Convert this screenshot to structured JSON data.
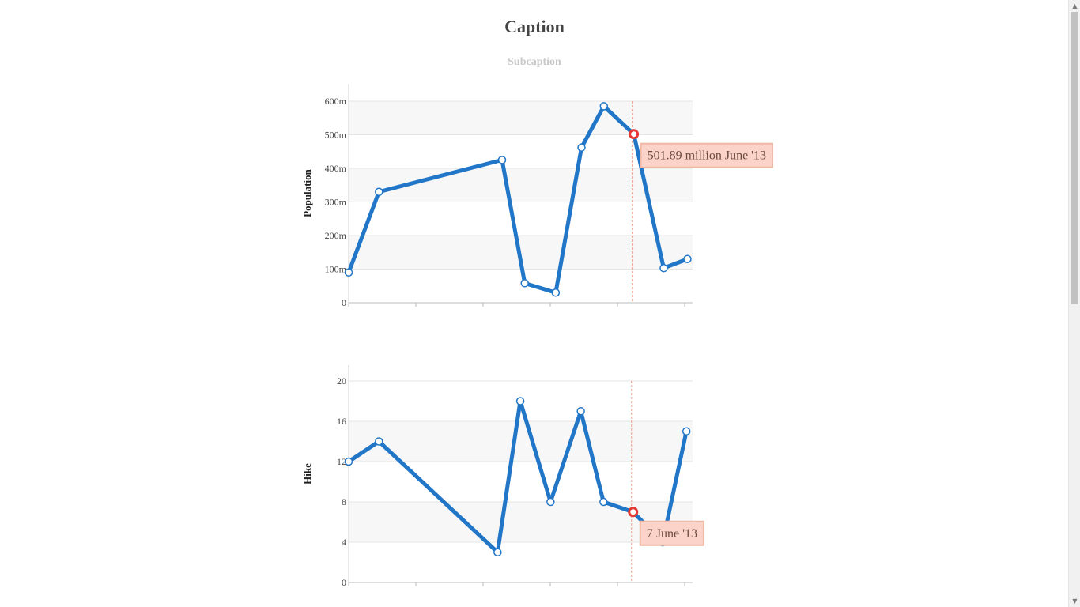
{
  "caption": "Caption",
  "subcaption": "Subcaption",
  "colors": {
    "line": "#2176c7",
    "anchor_fill": "#ffffff",
    "highlight": "#e53935",
    "crosshair": "#f4a38f",
    "band": "#f7f7f7",
    "grid": "#e4e4e4",
    "tooltip_bg": "#fbd3c8",
    "tooltip_border": "#f0b9a6",
    "tooltip_text": "#6b4a40",
    "caption": "#444444",
    "subcaption": "#c8c8c8"
  },
  "chart_data": [
    {
      "type": "line",
      "name": "population-chart",
      "ylabel": "Population",
      "ylim": [
        0,
        600
      ],
      "yticks": [
        0,
        100,
        200,
        300,
        400,
        500,
        600
      ],
      "ytick_labels": [
        "0",
        "100m",
        "200m",
        "300m",
        "400m",
        "500m",
        "600m"
      ],
      "xlim": [
        0,
        1
      ],
      "x": [
        0.0,
        0.088,
        0.446,
        0.512,
        0.602,
        0.677,
        0.742,
        0.829,
        0.916,
        0.985
      ],
      "values": [
        90,
        330,
        425,
        58,
        30,
        462,
        585,
        501.89,
        103,
        130
      ],
      "highlight_index": 7,
      "tooltip": "501.89 million June '13"
    },
    {
      "type": "line",
      "name": "hike-chart",
      "ylabel": "Hike",
      "ylim": [
        0,
        20
      ],
      "yticks": [
        0,
        4,
        8,
        12,
        16,
        20
      ],
      "ytick_labels": [
        "0",
        "4",
        "8",
        "12",
        "16",
        "20"
      ],
      "xlim": [
        0,
        1
      ],
      "x": [
        0.0,
        0.088,
        0.433,
        0.499,
        0.587,
        0.675,
        0.741,
        0.827,
        0.913,
        0.982
      ],
      "values": [
        12,
        14,
        3,
        18,
        8,
        17,
        8,
        7,
        4,
        15
      ],
      "highlight_index": 7,
      "tooltip": "7 June '13"
    }
  ]
}
